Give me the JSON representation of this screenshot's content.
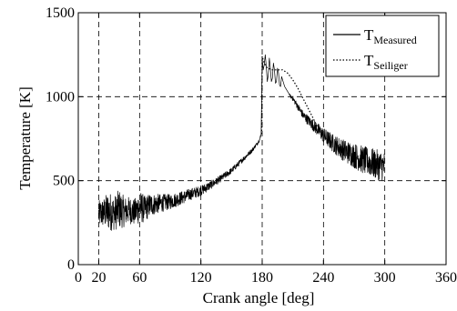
{
  "chart_data": {
    "type": "line",
    "xlabel": "Crank angle [deg]",
    "ylabel": "Temperature [K]",
    "xlim": [
      0,
      360
    ],
    "ylim": [
      0,
      1500
    ],
    "x_ticks": [
      0,
      20,
      60,
      120,
      180,
      240,
      300,
      360
    ],
    "y_ticks": [
      0,
      500,
      1000,
      1500
    ],
    "x_tick_labels": [
      "0",
      "20",
      "60",
      "120",
      "180",
      "240",
      "300",
      "360"
    ],
    "y_tick_labels": [
      "0",
      "500",
      "1000",
      "1500"
    ],
    "grid": true,
    "legend_position": "top-right",
    "series": [
      {
        "name": "T",
        "name_subscript": "Measured",
        "style": "solid",
        "color": "#000000",
        "x": [
          20,
          25,
          30,
          35,
          40,
          45,
          50,
          55,
          60,
          65,
          70,
          80,
          90,
          100,
          110,
          120,
          130,
          140,
          150,
          160,
          170,
          175,
          178,
          179,
          180,
          181,
          182,
          183,
          184,
          185,
          186,
          187,
          188,
          189,
          190,
          191,
          192,
          193,
          194,
          195,
          196,
          197,
          198,
          199,
          200,
          202,
          204,
          206,
          208,
          210,
          215,
          220,
          225,
          230,
          235,
          240,
          245,
          250,
          255,
          260,
          265,
          270,
          275,
          280,
          285,
          290,
          295,
          300
        ],
        "y": [
          300,
          310,
          320,
          305,
          330,
          315,
          325,
          310,
          345,
          330,
          355,
          365,
          375,
          395,
          420,
          440,
          475,
          515,
          560,
          620,
          680,
          720,
          750,
          780,
          1230,
          1160,
          1190,
          1250,
          1180,
          1090,
          1130,
          1230,
          1170,
          1090,
          1110,
          1200,
          1160,
          1080,
          1090,
          1170,
          1140,
          1070,
          1060,
          1120,
          1100,
          1060,
          1040,
          1020,
          1000,
          990,
          940,
          890,
          860,
          830,
          800,
          770,
          745,
          720,
          700,
          680,
          665,
          650,
          635,
          620,
          610,
          600,
          590,
          585
        ],
        "noise_amplitude": [
          80,
          90,
          120,
          100,
          120,
          90,
          80,
          80,
          100,
          80,
          70,
          55,
          45,
          40,
          35,
          30,
          25,
          20,
          18,
          15,
          12,
          10,
          10,
          0,
          0,
          0,
          0,
          0,
          0,
          0,
          0,
          0,
          0,
          0,
          0,
          0,
          0,
          0,
          0,
          0,
          0,
          0,
          0,
          0,
          0,
          0,
          0,
          0,
          10,
          15,
          20,
          25,
          30,
          35,
          40,
          45,
          50,
          55,
          60,
          65,
          70,
          75,
          80,
          85,
          85,
          90,
          90,
          90
        ]
      },
      {
        "name": "T",
        "name_subscript": "Seiliger",
        "style": "dotted",
        "color": "#000000",
        "x": [
          178,
          179.5,
          180,
          182,
          185,
          190,
          195,
          200,
          205,
          210,
          215,
          220,
          225,
          230,
          235
        ],
        "y": [
          760,
          780,
          1240,
          1200,
          1170,
          1160,
          1160,
          1160,
          1140,
          1100,
          1050,
          990,
          930,
          870,
          810
        ]
      }
    ]
  }
}
